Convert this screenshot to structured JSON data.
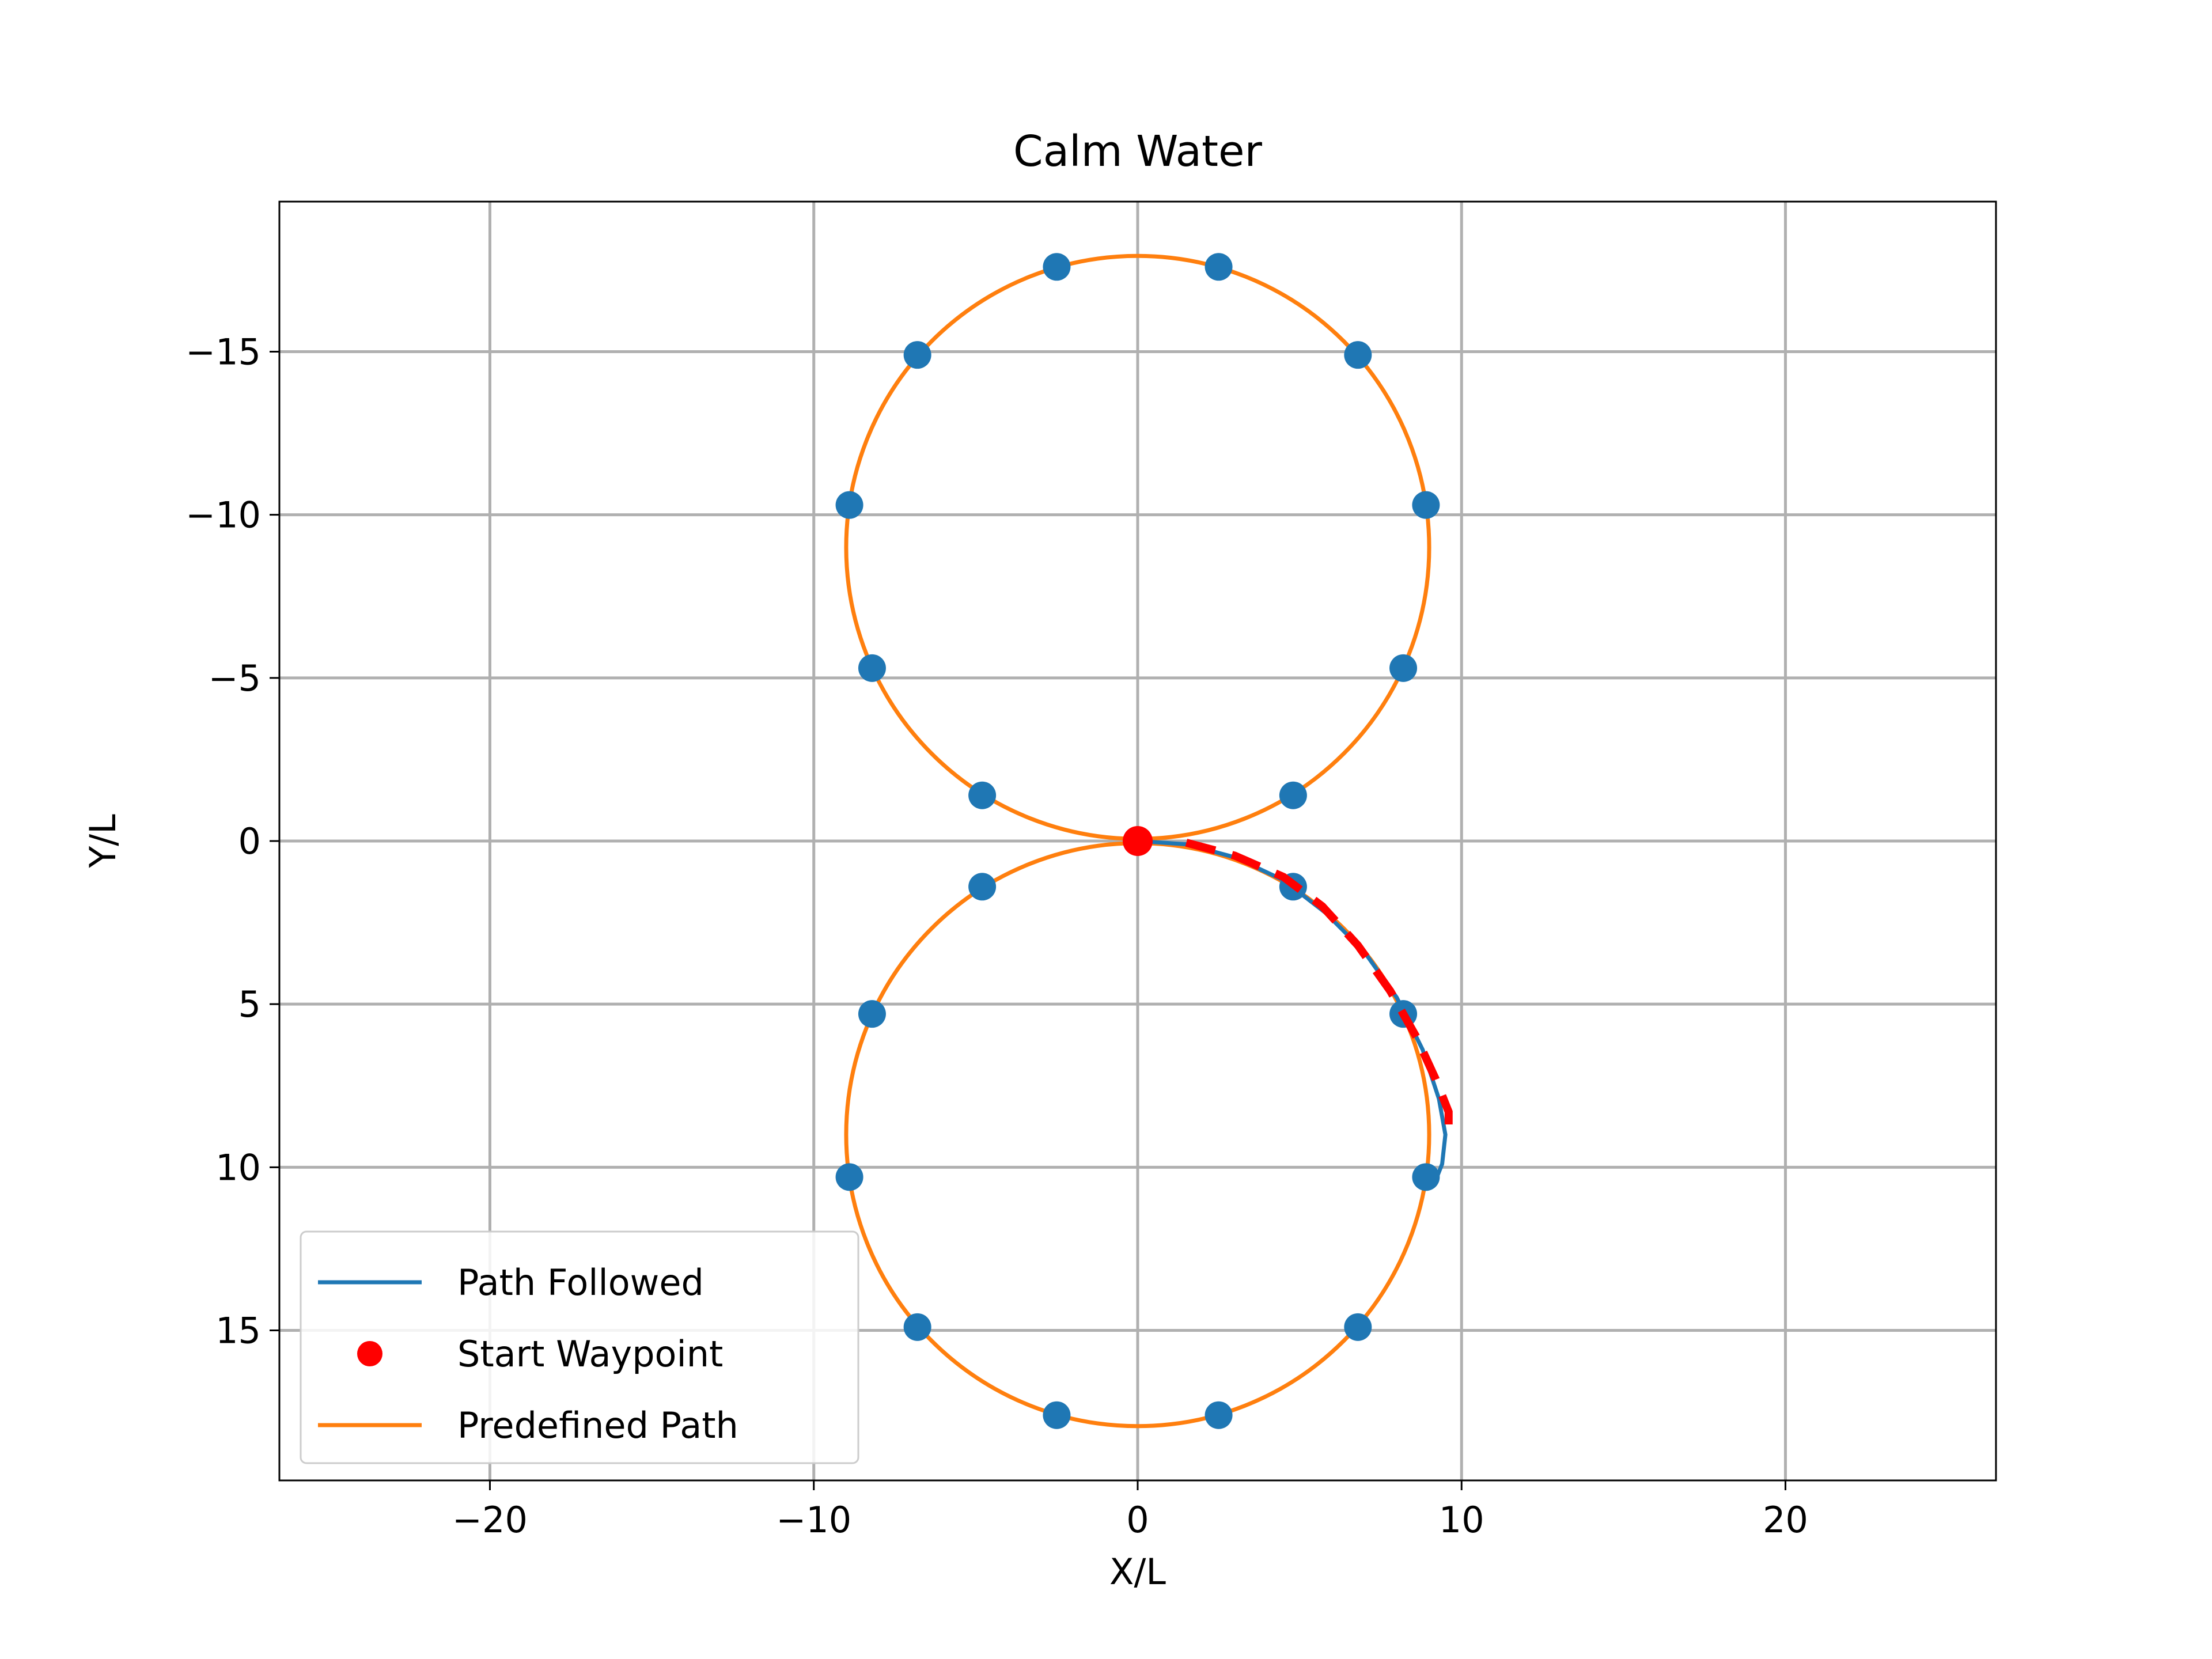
{
  "chart_data": {
    "type": "line",
    "title": "Calm Water",
    "xlabel": "X/L",
    "ylabel": "Y/L",
    "xlim": [
      -26.5,
      26.5
    ],
    "ylim": [
      19.6,
      -19.6
    ],
    "y_inverted": true,
    "grid": true,
    "xticks": [
      -20,
      -10,
      0,
      10,
      20
    ],
    "yticks": [
      -15,
      -10,
      -5,
      0,
      5,
      10,
      15
    ],
    "xtick_labels": [
      "−20",
      "−10",
      "0",
      "10",
      "20"
    ],
    "ytick_labels": [
      "−15",
      "−10",
      "−5",
      "0",
      "5",
      "10",
      "15"
    ],
    "legend_position": "lower-left",
    "colors": {
      "path_followed": "#1f77b4",
      "start_waypoint": "#ff0000",
      "predefined_path": "#ff7f0e",
      "waypoints": "#1f77b4",
      "tracking_dash": "#ff0000",
      "grid": "#b0b0b0"
    },
    "series": [
      {
        "name": "Path Followed",
        "kind": "line",
        "x": [
          0,
          1.5,
          3.0,
          4.5,
          5.8,
          7.0,
          8.0,
          8.8,
          9.3,
          9.5,
          9.4,
          9.2
        ],
        "y": [
          0,
          0.1,
          0.5,
          1.2,
          2.2,
          3.4,
          4.8,
          6.4,
          7.9,
          9.0,
          9.9,
          10.4
        ]
      },
      {
        "name": "Start Waypoint",
        "kind": "marker",
        "x": [
          0
        ],
        "y": [
          0
        ]
      },
      {
        "name": "Predefined Path",
        "kind": "circles",
        "circles": [
          {
            "cx": 0,
            "cy": -9,
            "r": 9
          },
          {
            "cx": 0,
            "cy": 9,
            "r": 9
          }
        ]
      }
    ],
    "waypoints": {
      "x": [
        2.5,
        6.8,
        8.9,
        8.2,
        4.8,
        0,
        -4.8,
        -8.2,
        -8.9,
        -6.8,
        -2.5,
        2.5,
        6.8,
        8.9,
        8.2,
        4.8,
        -4.8,
        -8.2,
        -8.9,
        -6.8,
        -2.5
      ],
      "y": [
        -17.6,
        -14.9,
        -10.3,
        -5.3,
        -1.4,
        0,
        -1.4,
        -5.3,
        -10.3,
        -14.9,
        -17.6,
        17.6,
        14.9,
        10.3,
        5.3,
        1.4,
        1.4,
        5.3,
        10.3,
        14.9,
        17.6
      ]
    },
    "tracking_dash": {
      "x": [
        1.5,
        3.0,
        4.5,
        5.7,
        6.8,
        7.8,
        8.6,
        9.2,
        9.6,
        9.6
      ],
      "y": [
        0.05,
        0.45,
        1.1,
        2.0,
        3.2,
        4.6,
        6.0,
        7.3,
        8.3,
        9.1
      ]
    }
  }
}
